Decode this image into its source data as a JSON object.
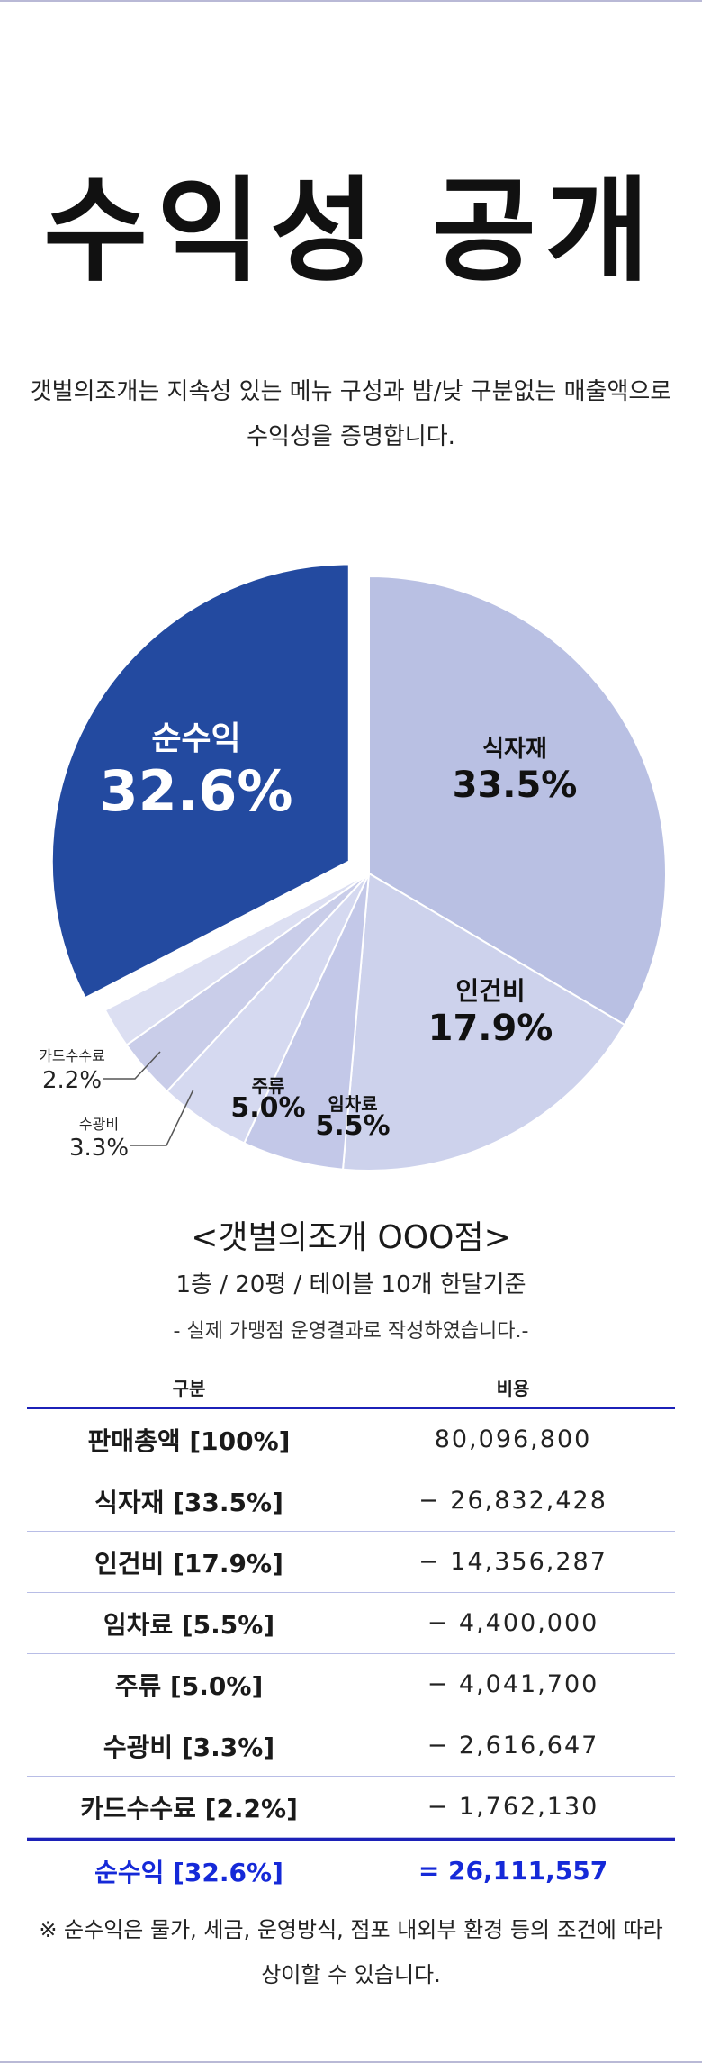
{
  "page": {
    "title": "수익성 공개",
    "intro": "갯벌의조개는 지속성 있는 메뉴 구성과 밤/낮 구분없는 매출액으로 수익성을 증명합니다."
  },
  "chart_data": {
    "type": "pie",
    "title": "",
    "slices": [
      {
        "label": "식자재",
        "value": 33.5,
        "display": "33.5%",
        "color": "#b9c0e3"
      },
      {
        "label": "인건비",
        "value": 17.9,
        "display": "17.9%",
        "color": "#cdd2ec"
      },
      {
        "label": "임차료",
        "value": 5.5,
        "display": "5.5%",
        "color": "#c3c8e8"
      },
      {
        "label": "주류",
        "value": 5.0,
        "display": "5.0%",
        "color": "#d5d9f0"
      },
      {
        "label": "수광비",
        "value": 3.3,
        "display": "3.3%",
        "color": "#c9cde9"
      },
      {
        "label": "카드수수료",
        "value": 2.2,
        "display": "2.2%",
        "color": "#dcdff2"
      },
      {
        "label": "순수익",
        "value": 32.6,
        "display": "32.6%",
        "color": "#234aa0",
        "exploded": true
      }
    ]
  },
  "store": {
    "name": "<갯벌의조개 OOO점>",
    "desc": "1층 / 20평 / 테이블 10개 한달기준",
    "note": "- 실제 가맹점 운영결과로 작성하였습니다.-"
  },
  "table": {
    "headers": [
      "구분",
      "비용"
    ],
    "rows": [
      {
        "item": "판매총액 [100%]",
        "amount": "80,096,800"
      },
      {
        "item": "식자재 [33.5%]",
        "amount": "− 26,832,428"
      },
      {
        "item": "인건비 [17.9%]",
        "amount": "− 14,356,287"
      },
      {
        "item": "임차료 [5.5%]",
        "amount": "− 4,400,000"
      },
      {
        "item": "주류 [5.0%]",
        "amount": "− 4,041,700"
      },
      {
        "item": "수광비 [3.3%]",
        "amount": "− 2,616,647"
      },
      {
        "item": "카드수수료 [2.2%]",
        "amount": "− 1,762,130"
      }
    ],
    "total": {
      "item": "순수익 [32.6%]",
      "amount": "= 26,111,557"
    }
  },
  "footnote": "※ 순수익은 물가, 세금, 운영방식, 점포 내외부 환경 등의 조건에 따라 상이할 수 있습니다."
}
